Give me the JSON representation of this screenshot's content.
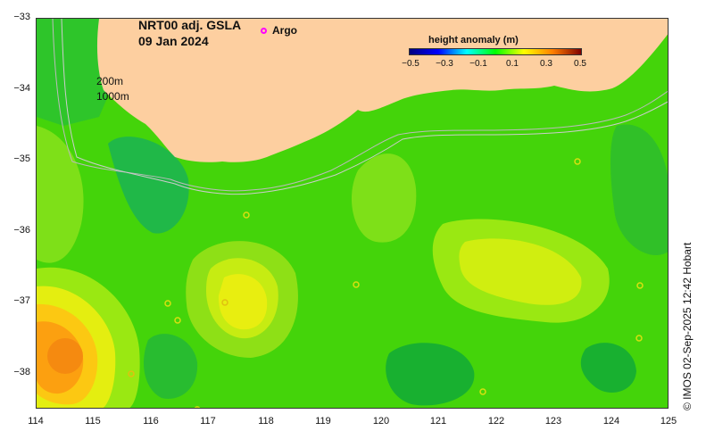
{
  "title": {
    "line1": "NRT00 adj. GSLA",
    "line2": "09 Jan 2024"
  },
  "argo_legend": {
    "label": "Argo",
    "marker_color": "#ff00ff"
  },
  "colorbar": {
    "title": "height anomaly (m)",
    "ticks": [
      "−0.5",
      "−0.3",
      "−0.1",
      "0.1",
      "0.3",
      "0.5"
    ],
    "min": -0.5,
    "max": 0.5,
    "colors": [
      "#00007f",
      "#0000ff",
      "#00ffff",
      "#00ff00",
      "#ffff00",
      "#ff7f00",
      "#7f0000"
    ]
  },
  "isobaths": {
    "shallow": "200m",
    "deep": "1000m"
  },
  "axes": {
    "lon_ticks": [
      "114",
      "115",
      "116",
      "117",
      "118",
      "119",
      "120",
      "121",
      "122",
      "123",
      "124",
      "125"
    ],
    "lat_ticks": [
      "−33",
      "−34",
      "−35",
      "−36",
      "−37",
      "−38"
    ],
    "lon_range": [
      114,
      125
    ],
    "lat_range": [
      -38.5,
      -33
    ]
  },
  "credit": "© IMOS 02-Sep-2025 12:42 Hobart",
  "colors": {
    "land": "#fdcfa0",
    "background_field": "#44d40a",
    "isobath": "#bbbbbb"
  }
}
